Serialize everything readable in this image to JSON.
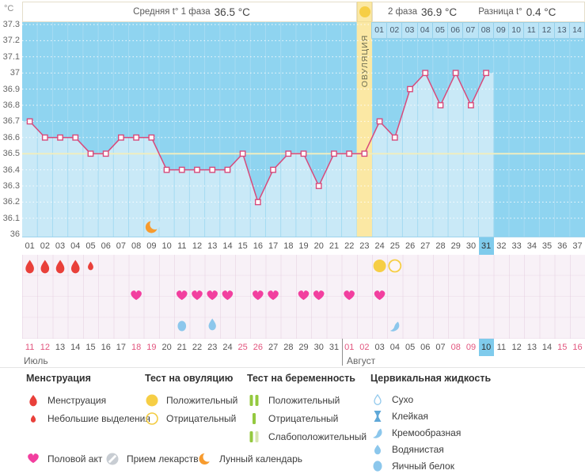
{
  "header": {
    "unit_label": "°C",
    "phase1_label": "Средняя t° 1 фаза",
    "phase1_value": "36.5 °C",
    "phase2_label": "2 фаза",
    "phase2_value": "36.9 °C",
    "diff_label": "Разница t°",
    "diff_value": "0.4 °C"
  },
  "chart_data": {
    "type": "line",
    "title": "График базальной температуры",
    "ylabel": "°C",
    "ylim": [
      36.0,
      37.3
    ],
    "ytick_labels": [
      "37.3",
      "37.2",
      "37.1",
      "37",
      "36.9",
      "36.8",
      "36.7",
      "36.6",
      "36.5",
      "36.4",
      "36.3",
      "36.2",
      "36.1",
      "36"
    ],
    "x_categories": [
      "01",
      "02",
      "03",
      "04",
      "05",
      "06",
      "07",
      "08",
      "09",
      "10",
      "11",
      "12",
      "13",
      "14",
      "15",
      "16",
      "17",
      "18",
      "19",
      "20",
      "21",
      "22",
      "23",
      "24",
      "25",
      "26",
      "27",
      "28",
      "29",
      "30",
      "31",
      "32",
      "33",
      "34",
      "35",
      "36",
      "37"
    ],
    "series": [
      {
        "name": "Температура",
        "values": [
          36.7,
          36.6,
          36.6,
          36.6,
          36.5,
          36.5,
          36.6,
          36.6,
          36.6,
          36.4,
          36.4,
          36.4,
          36.4,
          36.4,
          36.5,
          36.2,
          36.4,
          36.5,
          36.5,
          36.3,
          36.5,
          36.5,
          36.5,
          36.7,
          36.6,
          36.9,
          37,
          36.8,
          37,
          36.8,
          37,
          null,
          null,
          null,
          null,
          null,
          null
        ]
      }
    ],
    "coverline": 36.5,
    "ovulation_day": 23,
    "ovulation_band_label": "ОВУЛЯЦИЯ",
    "moon_day": 9,
    "dpo_labels": [
      "01",
      "02",
      "03",
      "04",
      "05",
      "06",
      "07",
      "08",
      "09",
      "10",
      "11",
      "12",
      "13",
      "14"
    ],
    "grid": "horizontal-dotted-white"
  },
  "cycle_days": {
    "highlight_day": 31
  },
  "events": {
    "menstruation_days": [
      1,
      2,
      3,
      4
    ],
    "spotting_days": [
      5
    ],
    "ovulation_test_positive_days": [
      24
    ],
    "ovulation_test_negative_days": [
      25
    ],
    "intercourse_days": [
      8,
      11,
      12,
      13,
      14,
      16,
      17,
      19,
      20,
      22,
      24
    ],
    "cervical_fluid": [
      {
        "day": 11,
        "type": "egg_white"
      },
      {
        "day": 13,
        "type": "watery"
      },
      {
        "day": 25,
        "type": "creamy"
      }
    ]
  },
  "dates": {
    "labels": [
      "11",
      "12",
      "13",
      "14",
      "15",
      "16",
      "17",
      "18",
      "19",
      "20",
      "21",
      "22",
      "23",
      "24",
      "25",
      "26",
      "27",
      "28",
      "29",
      "30",
      "31",
      "01",
      "02",
      "03",
      "04",
      "05",
      "06",
      "07",
      "08",
      "09",
      "10",
      "11",
      "12",
      "13",
      "14",
      "15",
      "16"
    ],
    "weekend_positions": [
      1,
      2,
      8,
      9,
      15,
      16,
      22,
      23,
      29,
      30,
      36,
      37
    ],
    "today_position": 31,
    "month1_label": "Июль",
    "month2_label": "Август",
    "month2_start_day": 22
  },
  "colors": {
    "chart_bg": "#8FD4F0",
    "area_fill": "#C9E9F7",
    "gridline": "#A5DBF2",
    "coverline": "#EFEDC0",
    "temp_line": "#D84A7B",
    "ovulation_band": "#FBE8A4",
    "highlight_day": "#7FCBEC",
    "menstruation": "#E9403A",
    "intercourse": "#F23F9F",
    "cervical_fluid": "#8CC7EC",
    "test_yellow": "#F6CE45",
    "pregnancy_green": "#94C93F",
    "weekend_date": "#E2557E",
    "moon": "#F79B2E"
  },
  "legend": {
    "menstruation": {
      "title": "Менструация",
      "items": [
        {
          "icon": "drop-large",
          "label": "Менструация"
        },
        {
          "icon": "drop-small",
          "label": "Небольшие выделения"
        }
      ]
    },
    "ovulation_test": {
      "title": "Тест на овуляцию",
      "items": [
        {
          "icon": "circle-filled",
          "label": "Положительный"
        },
        {
          "icon": "circle-outline",
          "label": "Отрицательный"
        }
      ]
    },
    "pregnancy_test": {
      "title": "Тест на беременность",
      "items": [
        {
          "icon": "two-bars",
          "label": "Положительный"
        },
        {
          "icon": "one-bar",
          "label": "Отрицательный"
        },
        {
          "icon": "weak-bars",
          "label": "Слабоположительный"
        }
      ]
    },
    "cervical_fluid": {
      "title": "Цервикальная жидкость",
      "items": [
        {
          "icon": "drop-outline",
          "label": "Сухо"
        },
        {
          "icon": "sticky",
          "label": "Клейкая"
        },
        {
          "icon": "comma",
          "label": "Кремообразная"
        },
        {
          "icon": "drop-filled",
          "label": "Водянистая"
        },
        {
          "icon": "round-drop",
          "label": "Яичный белок"
        }
      ]
    },
    "bottom": [
      {
        "icon": "heart",
        "label": "Половой акт"
      },
      {
        "icon": "pill",
        "label": "Прием лекарств"
      },
      {
        "icon": "moon",
        "label": "Лунный календарь"
      }
    ]
  }
}
